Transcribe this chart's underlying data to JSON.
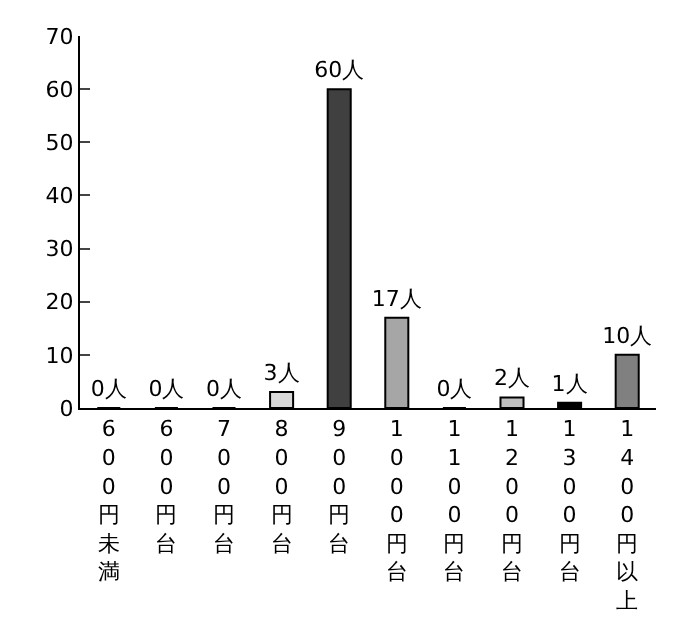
{
  "chart_data": {
    "type": "bar",
    "categories": [
      "600円未満",
      "600円台",
      "700円台",
      "800円台",
      "900円台",
      "1000円台",
      "1100円台",
      "1200円台",
      "1300円台",
      "1400円以上"
    ],
    "values": [
      0,
      0,
      0,
      3,
      60,
      17,
      0,
      2,
      1,
      10
    ],
    "value_labels": [
      "0人",
      "0人",
      "0人",
      "3人",
      "60人",
      "17人",
      "0人",
      "2人",
      "1人",
      "10人"
    ],
    "colors": [
      "#ffffff",
      "#ffffff",
      "#ffffff",
      "#d9d9d9",
      "#404040",
      "#a6a6a6",
      "#ffffff",
      "#c0c0c0",
      "#000000",
      "#808080"
    ],
    "ylim": [
      0,
      70
    ],
    "yticks": [
      0,
      10,
      20,
      30,
      40,
      50,
      60,
      70
    ]
  }
}
